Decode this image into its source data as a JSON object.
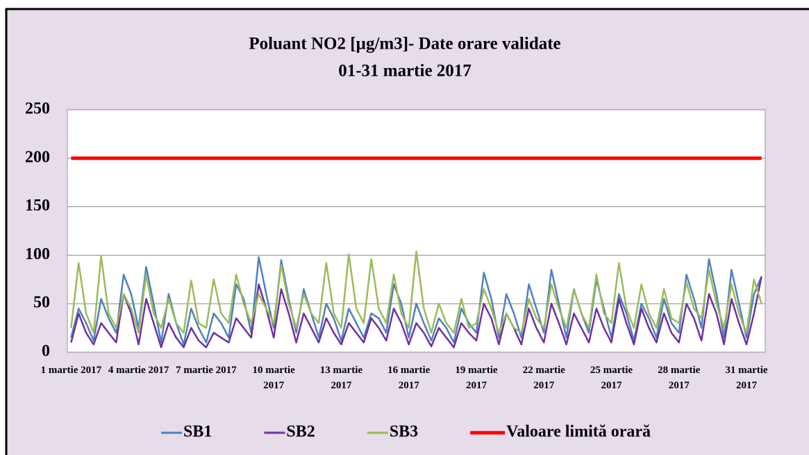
{
  "chart_data": {
    "type": "line",
    "title": "Poluant NO2 [µg/m3]- Date orare validate",
    "subtitle": "01-31 martie 2017",
    "categories": [
      "1 martie 2017",
      null,
      null,
      null,
      null,
      null,
      null,
      null,
      null,
      "4 martie 2017",
      null,
      null,
      null,
      null,
      null,
      null,
      null,
      null,
      "7 martie 2017",
      null,
      null,
      null,
      null,
      null,
      null,
      null,
      null,
      "10 martie 2017",
      null,
      null,
      null,
      null,
      null,
      null,
      null,
      null,
      "13 martie 2017",
      null,
      null,
      null,
      null,
      null,
      null,
      null,
      null,
      "16 martie 2017",
      null,
      null,
      null,
      null,
      null,
      null,
      null,
      null,
      "19 martie 2017",
      null,
      null,
      null,
      null,
      null,
      null,
      null,
      null,
      "22 martie 2017",
      null,
      null,
      null,
      null,
      null,
      null,
      null,
      null,
      "25 martie 2017",
      null,
      null,
      null,
      null,
      null,
      null,
      null,
      null,
      "28 martie 2017",
      null,
      null,
      null,
      null,
      null,
      null,
      null,
      null,
      "31 martie 2017",
      null,
      null
    ],
    "series": [
      {
        "name": "SB1",
        "color": "#4f81bd",
        "values": [
          15,
          45,
          30,
          12,
          55,
          35,
          20,
          80,
          60,
          25,
          88,
          50,
          10,
          60,
          30,
          8,
          45,
          25,
          10,
          40,
          30,
          15,
          70,
          55,
          20,
          98,
          60,
          25,
          95,
          55,
          20,
          65,
          40,
          15,
          50,
          35,
          12,
          45,
          30,
          15,
          40,
          35,
          20,
          70,
          50,
          15,
          50,
          30,
          12,
          35,
          25,
          10,
          45,
          30,
          20,
          82,
          55,
          15,
          60,
          40,
          15,
          70,
          45,
          20,
          85,
          50,
          15,
          65,
          40,
          20,
          75,
          45,
          15,
          60,
          40,
          12,
          50,
          35,
          15,
          55,
          30,
          20,
          80,
          55,
          25,
          96,
          60,
          15,
          85,
          50,
          15,
          60,
          78
        ]
      },
      {
        "name": "SB2",
        "color": "#7030a0",
        "values": [
          10,
          40,
          20,
          8,
          30,
          20,
          10,
          60,
          40,
          8,
          55,
          30,
          5,
          30,
          15,
          5,
          25,
          12,
          5,
          20,
          15,
          10,
          35,
          25,
          15,
          70,
          45,
          15,
          65,
          40,
          10,
          40,
          25,
          10,
          35,
          20,
          8,
          30,
          20,
          10,
          35,
          25,
          12,
          45,
          30,
          8,
          30,
          20,
          6,
          25,
          15,
          5,
          30,
          20,
          12,
          50,
          35,
          8,
          40,
          25,
          8,
          45,
          25,
          10,
          50,
          30,
          8,
          40,
          25,
          10,
          45,
          25,
          10,
          55,
          30,
          8,
          45,
          25,
          10,
          40,
          20,
          10,
          50,
          35,
          12,
          60,
          40,
          8,
          55,
          30,
          8,
          40,
          78
        ]
      },
      {
        "name": "SB3",
        "color": "#9bbb59",
        "values": [
          25,
          92,
          40,
          20,
          99,
          40,
          25,
          60,
          45,
          20,
          80,
          40,
          25,
          55,
          30,
          20,
          74,
          30,
          25,
          75,
          40,
          30,
          80,
          50,
          30,
          60,
          45,
          30,
          90,
          50,
          25,
          60,
          40,
          30,
          92,
          40,
          25,
          101,
          45,
          30,
          96,
          45,
          30,
          80,
          40,
          25,
          104,
          45,
          20,
          50,
          30,
          20,
          55,
          25,
          30,
          65,
          45,
          20,
          40,
          25,
          20,
          55,
          35,
          25,
          70,
          45,
          25,
          65,
          40,
          25,
          80,
          40,
          30,
          92,
          45,
          25,
          70,
          40,
          25,
          65,
          35,
          30,
          72,
          45,
          35,
          85,
          50,
          25,
          70,
          40,
          20,
          75,
          50
        ]
      },
      {
        "name": "Valoare limită orară",
        "color": "#ff0000",
        "values": [
          200,
          200,
          200,
          200,
          200,
          200,
          200,
          200,
          200,
          200,
          200,
          200,
          200,
          200,
          200,
          200,
          200,
          200,
          200,
          200,
          200,
          200,
          200,
          200,
          200,
          200,
          200,
          200,
          200,
          200,
          200,
          200,
          200,
          200,
          200,
          200,
          200,
          200,
          200,
          200,
          200,
          200,
          200,
          200,
          200,
          200,
          200,
          200,
          200,
          200,
          200,
          200,
          200,
          200,
          200,
          200,
          200,
          200,
          200,
          200,
          200,
          200,
          200,
          200,
          200,
          200,
          200,
          200,
          200,
          200,
          200,
          200,
          200,
          200,
          200,
          200,
          200,
          200,
          200,
          200,
          200,
          200,
          200,
          200,
          200,
          200,
          200,
          200,
          200,
          200,
          200,
          200,
          200
        ]
      }
    ],
    "ylim": [
      0,
      250
    ],
    "yticks": [
      0,
      50,
      100,
      150,
      200,
      250
    ],
    "grid": true
  }
}
